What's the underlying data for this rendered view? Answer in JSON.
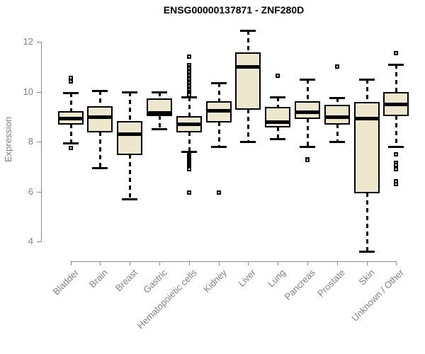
{
  "page": {
    "title": "ENSG00000137871 - ZNF280D"
  },
  "chart_data": {
    "type": "boxplot",
    "title": "ENSG00000137871 - ZNF280D",
    "ylabel": "Expression",
    "xlabel": "",
    "yticks": [
      4,
      6,
      8,
      10,
      12
    ],
    "ylim": [
      3.4,
      12.6
    ],
    "grid": false,
    "legend": "none",
    "colors": {
      "box_fill": "#EDE8CD",
      "box_border": "#000000",
      "median": "#000000",
      "axis_line": "#8C8C8C",
      "tick_text": "#808080",
      "title_text": "#000000"
    },
    "categories": [
      "Bladder",
      "Brain",
      "Breast",
      "Gastric",
      "Hematopoietic cells",
      "Kidney",
      "Liver",
      "Lung",
      "Pancreas",
      "Prostate",
      "Skin",
      "Unknown / Other"
    ],
    "series": [
      {
        "label": "Bladder",
        "whisker_high": 9.95,
        "q3": 9.2,
        "median": 8.95,
        "q1": 8.7,
        "whisker_low": 7.95,
        "outliers_high": [
          10.55,
          10.4
        ],
        "outliers_low": [
          7.75
        ]
      },
      {
        "label": "Brain",
        "whisker_high": 10.05,
        "q3": 9.4,
        "median": 9.0,
        "q1": 8.4,
        "whisker_low": 6.95,
        "outliers_high": [],
        "outliers_low": []
      },
      {
        "label": "Breast",
        "whisker_high": 10.0,
        "q3": 8.8,
        "median": 8.3,
        "q1": 7.5,
        "whisker_low": 5.7,
        "outliers_high": [],
        "outliers_low": []
      },
      {
        "label": "Gastric",
        "whisker_high": 10.0,
        "q3": 9.7,
        "median": 9.15,
        "q1": 9.05,
        "whisker_low": 8.5,
        "outliers_high": [],
        "outliers_low": []
      },
      {
        "label": "Hematopoietic cells",
        "whisker_high": 9.8,
        "q3": 9.0,
        "median": 8.7,
        "q1": 8.4,
        "whisker_low": 7.6,
        "outliers_high": [
          11.4,
          11.05,
          10.98,
          10.91,
          10.84,
          10.77,
          10.7,
          10.63,
          10.56,
          10.49,
          10.42,
          10.35,
          10.28,
          10.21,
          10.14,
          10.07,
          10.0,
          9.93,
          9.86
        ],
        "outliers_low": [
          7.5,
          7.45,
          7.4,
          7.35,
          7.3,
          7.25,
          7.2,
          7.15,
          7.1,
          7.05,
          7.0,
          6.95,
          6.9,
          5.95
        ]
      },
      {
        "label": "Kidney",
        "whisker_high": 10.35,
        "q3": 9.6,
        "median": 9.25,
        "q1": 8.8,
        "whisker_low": 7.8,
        "outliers_high": [],
        "outliers_low": [
          5.95
        ]
      },
      {
        "label": "Liver",
        "whisker_high": 12.45,
        "q3": 11.55,
        "median": 11.0,
        "q1": 9.3,
        "whisker_low": 8.0,
        "outliers_high": [],
        "outliers_low": []
      },
      {
        "label": "Lung",
        "whisker_high": 9.8,
        "q3": 9.35,
        "median": 8.8,
        "q1": 8.6,
        "whisker_low": 8.1,
        "outliers_high": [
          10.65
        ],
        "outliers_low": []
      },
      {
        "label": "Pancreas",
        "whisker_high": 10.5,
        "q3": 9.6,
        "median": 9.2,
        "q1": 8.95,
        "whisker_low": 7.8,
        "outliers_high": [],
        "outliers_low": [
          7.3,
          7.25
        ]
      },
      {
        "label": "Prostate",
        "whisker_high": 9.75,
        "q3": 9.45,
        "median": 9.0,
        "q1": 8.7,
        "whisker_low": 8.0,
        "outliers_high": [
          11.0
        ],
        "outliers_low": []
      },
      {
        "label": "Skin",
        "whisker_high": 10.5,
        "q3": 9.55,
        "median": 8.95,
        "q1": 5.95,
        "whisker_low": 3.6,
        "outliers_high": [],
        "outliers_low": []
      },
      {
        "label": "Unknown / Other",
        "whisker_high": 11.1,
        "q3": 9.95,
        "median": 9.5,
        "q1": 9.05,
        "whisker_low": 7.8,
        "outliers_high": [
          11.55
        ],
        "outliers_low": [
          7.5,
          7.15,
          7.05,
          6.9,
          6.4,
          6.3
        ]
      }
    ]
  }
}
